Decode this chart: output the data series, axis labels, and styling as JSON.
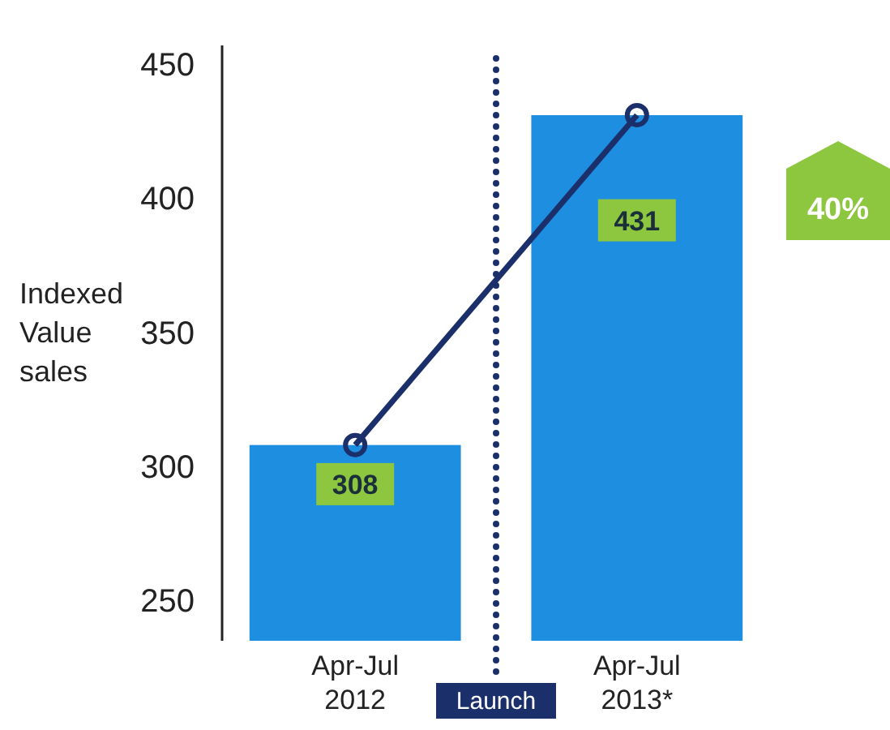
{
  "chart_data": {
    "type": "bar",
    "ylabel": "Indexed Value sales",
    "categories": [
      "Apr-Jul 2012",
      "Apr-Jul 2013*"
    ],
    "series": [
      {
        "color": "#1e8fe0",
        "values": [
          308,
          431
        ],
        "value_labels": [
          "308",
          "431"
        ]
      },
      {
        "type": "line",
        "color": "#1b2f6b",
        "values": [
          308,
          431
        ],
        "marker": "circle"
      }
    ],
    "ylim": [
      235,
      457
    ],
    "yticks": [
      250,
      300,
      350,
      400,
      450
    ],
    "grid": false,
    "annotations": [
      "Launch",
      "40%"
    ]
  }
}
